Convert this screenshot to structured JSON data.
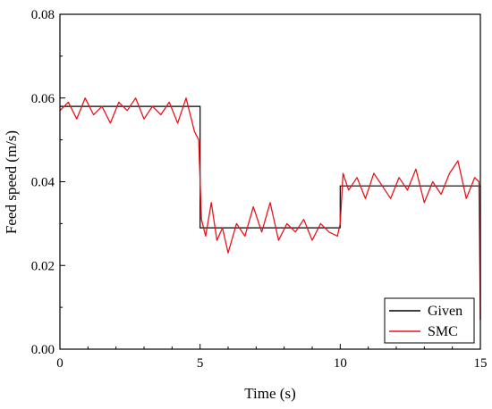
{
  "chart_data": {
    "type": "line",
    "xlabel": "Time (s)",
    "ylabel": "Feed speed (m/s)",
    "xlim": [
      0,
      15
    ],
    "ylim": [
      0,
      0.08
    ],
    "x_ticks": [
      "0",
      "5",
      "10",
      "15"
    ],
    "y_ticks": [
      "0.00",
      "0.02",
      "0.04",
      "0.06",
      "0.08"
    ],
    "grid": false,
    "legend_position": "bottom-right",
    "series": [
      {
        "name": "Given",
        "color": "#000000",
        "x": [
          0,
          5,
          5,
          10,
          10,
          15,
          15
        ],
        "y": [
          0.058,
          0.058,
          0.029,
          0.029,
          0.039,
          0.039,
          0.007
        ]
      },
      {
        "name": "SMC",
        "color": "#e8141c",
        "x": [
          0,
          0.3,
          0.6,
          0.9,
          1.2,
          1.5,
          1.8,
          2.1,
          2.4,
          2.7,
          3.0,
          3.3,
          3.6,
          3.9,
          4.2,
          4.5,
          4.8,
          4.95,
          5.05,
          5.2,
          5.4,
          5.6,
          5.8,
          6.0,
          6.3,
          6.6,
          6.9,
          7.2,
          7.5,
          7.8,
          8.1,
          8.4,
          8.7,
          9.0,
          9.3,
          9.6,
          9.9,
          10.0,
          10.1,
          10.3,
          10.6,
          10.9,
          11.2,
          11.5,
          11.8,
          12.1,
          12.4,
          12.7,
          13.0,
          13.3,
          13.6,
          13.9,
          14.2,
          14.5,
          14.8,
          14.95,
          15.0
        ],
        "y": [
          0.057,
          0.059,
          0.055,
          0.06,
          0.056,
          0.058,
          0.054,
          0.059,
          0.057,
          0.06,
          0.055,
          0.058,
          0.056,
          0.059,
          0.054,
          0.06,
          0.052,
          0.05,
          0.031,
          0.027,
          0.035,
          0.026,
          0.029,
          0.023,
          0.03,
          0.027,
          0.034,
          0.028,
          0.035,
          0.026,
          0.03,
          0.028,
          0.031,
          0.026,
          0.03,
          0.028,
          0.027,
          0.03,
          0.042,
          0.038,
          0.041,
          0.036,
          0.042,
          0.039,
          0.036,
          0.041,
          0.038,
          0.043,
          0.035,
          0.04,
          0.037,
          0.042,
          0.045,
          0.036,
          0.041,
          0.04,
          0.007
        ]
      }
    ]
  }
}
